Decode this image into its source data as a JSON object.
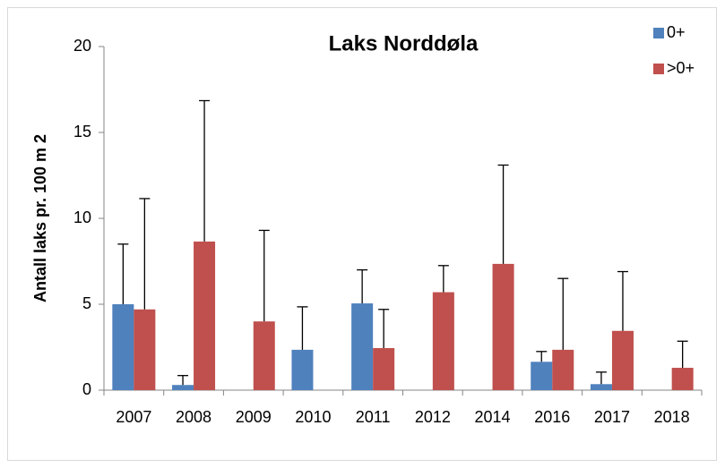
{
  "chart_data": {
    "type": "bar",
    "title": "Laks Norddøla",
    "y_label": "Antall laks pr. 100 m 2",
    "categories": [
      "2007",
      "2008",
      "2009",
      "2010",
      "2011",
      "2012",
      "2014",
      "2016",
      "2017",
      "2018"
    ],
    "series": [
      {
        "name": "0+",
        "color": "#4f81bd",
        "values": [
          5.0,
          0.3,
          0,
          2.35,
          5.05,
          0,
          0,
          1.65,
          0.35,
          0
        ],
        "errors": [
          3.5,
          0.55,
          0,
          2.5,
          1.95,
          0,
          0,
          0.6,
          0.7,
          0
        ]
      },
      {
        "name": ">0+",
        "color": "#c0504d",
        "values": [
          4.7,
          8.65,
          4.0,
          0,
          2.45,
          5.7,
          7.35,
          2.35,
          3.45,
          1.3
        ],
        "errors": [
          6.45,
          8.2,
          5.3,
          0,
          2.25,
          1.55,
          5.75,
          4.15,
          3.45,
          1.55
        ]
      }
    ],
    "ylim": [
      0,
      20
    ],
    "yticks": [
      0,
      5,
      10,
      15,
      20
    ],
    "grid": false,
    "legend": "top-right"
  }
}
